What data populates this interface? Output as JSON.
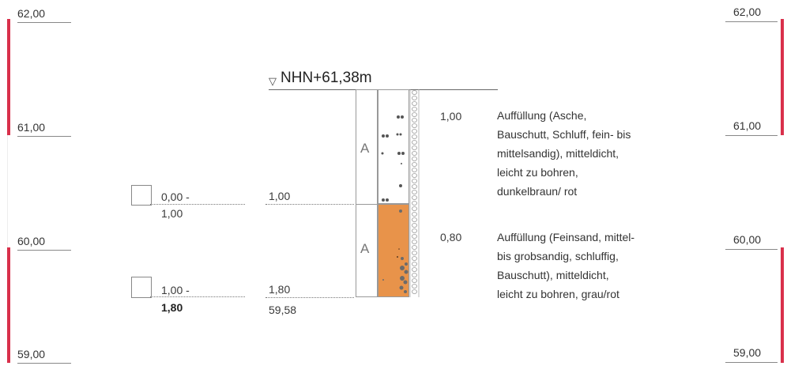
{
  "scale": {
    "left_labels": [
      "62,00",
      "61,00",
      "60,00",
      "59,00"
    ],
    "right_labels": [
      "62,00",
      "61,00",
      "60,00",
      "59,00"
    ]
  },
  "profile": {
    "header": "NHN+61,38m",
    "header_symbol": "▽",
    "layer_letters": [
      "A",
      "A"
    ],
    "depth_labels": [
      "1,00",
      "1,80"
    ],
    "base_elevation": "59,58"
  },
  "samples": [
    {
      "range_top": "0,00 -",
      "range_bottom": "1,00"
    },
    {
      "range_top": "1,00 -",
      "range_bottom": "1,80"
    }
  ],
  "layers": [
    {
      "thickness": "1,00",
      "description": [
        "Auffüllung (Asche,",
        "Bauschutt, Schluff, fein- bis",
        "mittelsandig), mitteldicht,",
        "leicht zu bohren,",
        "dunkelbraun/ rot"
      ]
    },
    {
      "thickness": "0,80",
      "description": [
        "Auffüllung (Feinsand, mittel-",
        "bis grobsandig, schluffig,",
        "Bauschutt), mitteldicht,",
        "leicht zu bohren, grau/rot"
      ]
    }
  ],
  "colors": {
    "scale_red": "#d9304b",
    "layer_fill_orange": "#e8934a",
    "line_gray": "#888888"
  }
}
